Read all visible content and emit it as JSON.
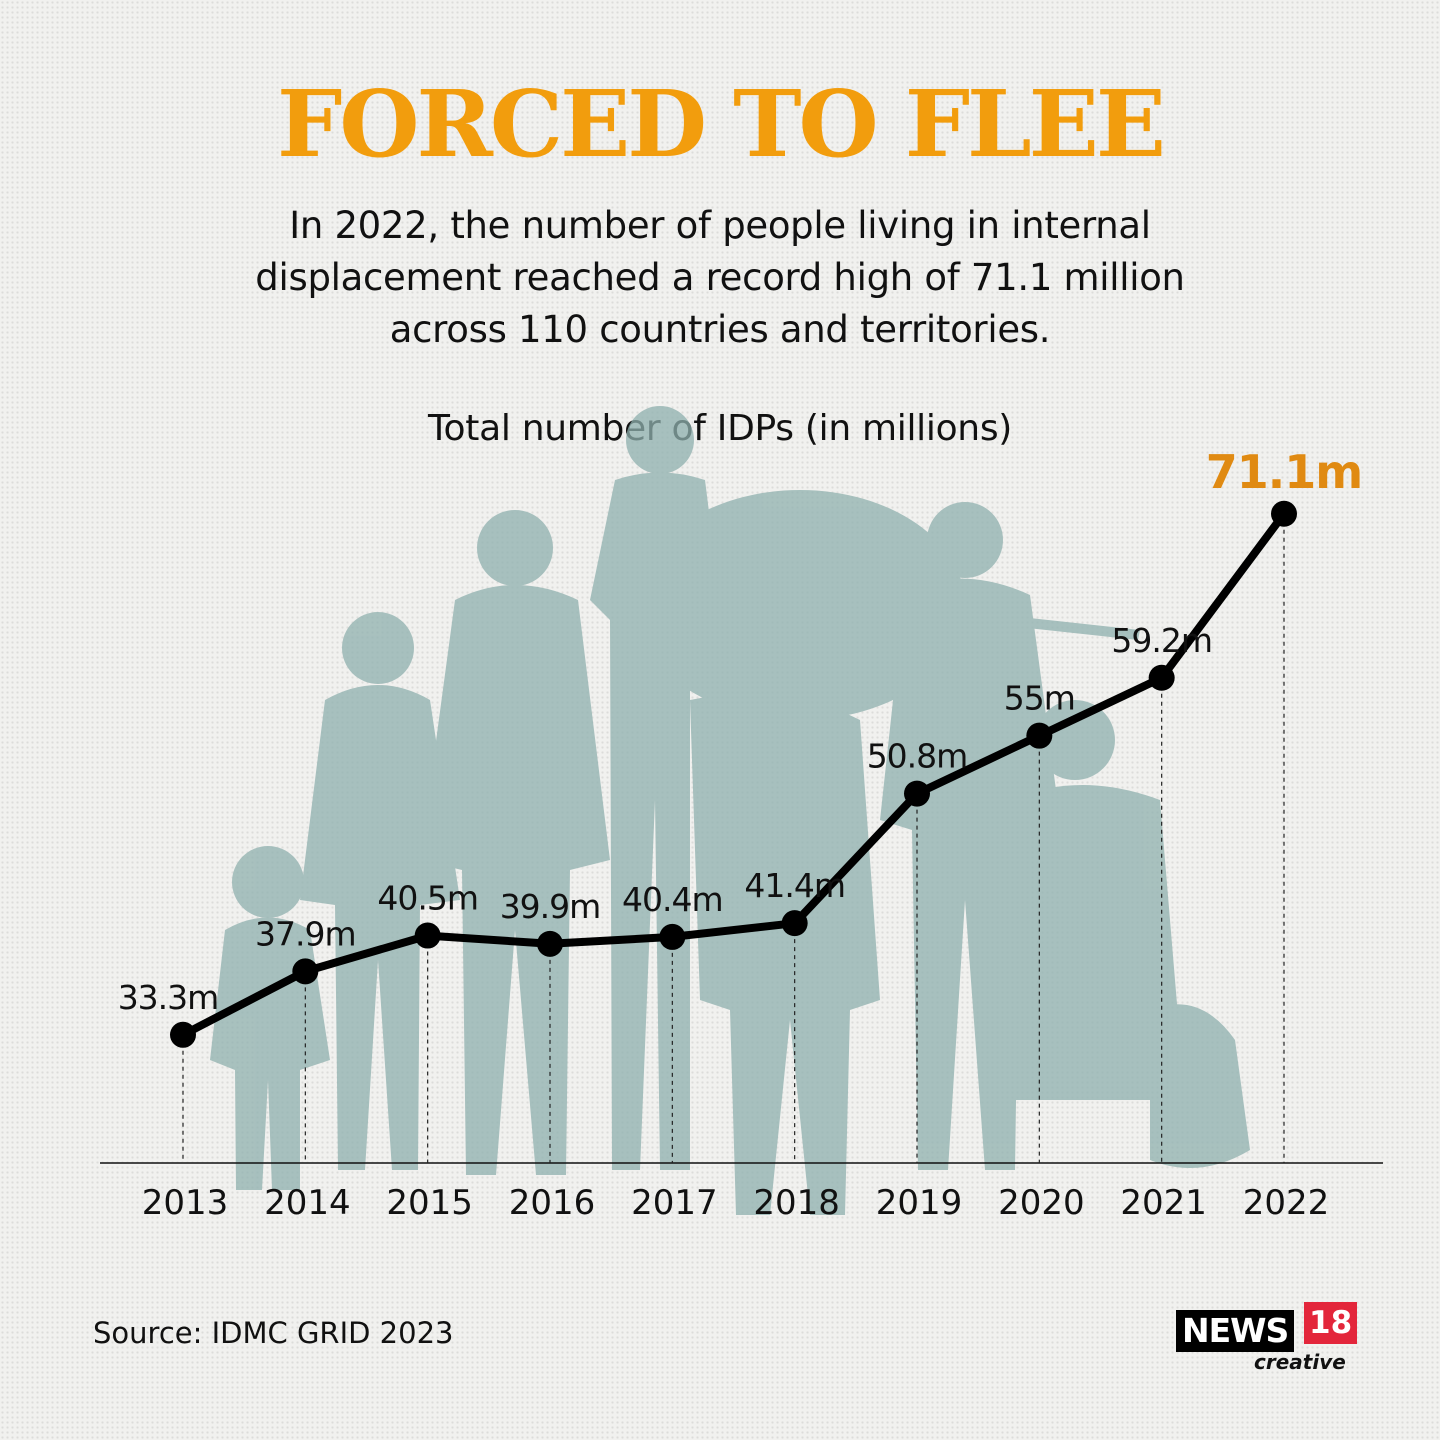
{
  "headline": "FORCED TO FLEE",
  "subtitle": "In 2022, the number of people living in internal displacement reached a record high of 71.1 million across 110 countries and territories.",
  "source": "Source: IDMC GRID 2023",
  "logo": {
    "word": "NEWS",
    "number": "18",
    "sub": "creative"
  },
  "colors": {
    "accent": "#f29d0d",
    "highlight_label": "#e08a12",
    "line": "#000000",
    "silhouette": "#8fb0ae"
  },
  "chart_data": {
    "type": "line",
    "title": "Total number of IDPs (in millions)",
    "categories": [
      "2013",
      "2014",
      "2015",
      "2016",
      "2017",
      "2018",
      "2019",
      "2020",
      "2021",
      "2022"
    ],
    "values": [
      33.3,
      37.9,
      40.5,
      39.9,
      40.4,
      41.4,
      50.8,
      55,
      59.2,
      71.1
    ],
    "data_labels": [
      "33.3m",
      "37.9m",
      "40.5m",
      "39.9m",
      "40.4m",
      "41.4m",
      "50.8m",
      "55m",
      "59.2m",
      "71.1m"
    ],
    "highlight_index": 9,
    "xlabel": "",
    "ylabel": "",
    "ylim": [
      24,
      75
    ],
    "grid": false,
    "legend": "none"
  }
}
